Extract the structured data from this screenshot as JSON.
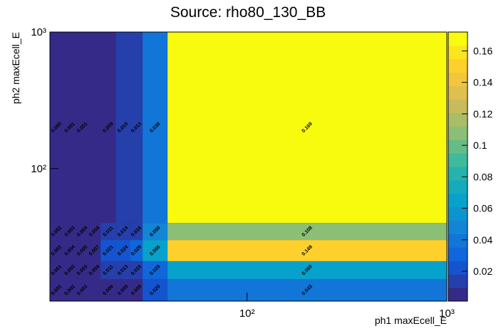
{
  "chart_data": {
    "type": "heatmap",
    "title": "Source: rho80_130_BB",
    "x_label": "ph1 maxEcell_E",
    "y_label": "ph2 maxEcell_E",
    "log_x": true,
    "log_y": true,
    "xlim": [
      10.3,
      1000
    ],
    "ylim": [
      10.7,
      1000
    ],
    "xticks": [
      {
        "value": 100,
        "label": "10²"
      },
      {
        "value": 1000,
        "label": "10³"
      }
    ],
    "yticks": [
      {
        "value": 100,
        "label": "10²"
      },
      {
        "value": 1000,
        "label": "10³"
      }
    ],
    "x_edges": [
      10.3,
      12,
      14,
      16,
      18.5,
      22,
      26,
      30,
      40,
      1000
    ],
    "y_edges": [
      10.7,
      15.5,
      21,
      30,
      40,
      1000
    ],
    "values": [
      [
        0.001,
        0.002,
        0.002,
        null,
        0.006,
        0.009,
        0.009,
        0.02,
        0.043
      ],
      [
        0.001,
        0.002,
        0.003,
        0.004,
        0.011,
        0.013,
        0.015,
        0.029,
        0.069
      ],
      [
        0.002,
        0.004,
        0.005,
        0.007,
        0.021,
        0.024,
        0.029,
        0.066,
        0.149
      ],
      [
        0.002,
        0.003,
        0.004,
        0.004,
        0.011,
        0.014,
        0.016,
        0.05,
        0.108
      ],
      [
        0.0,
        0.001,
        0.001,
        null,
        0.009,
        0.01,
        0.013,
        0.038,
        0.169
      ]
    ],
    "value_labels": [
      [
        "0.001",
        "0.002",
        "0.002",
        null,
        "0.006",
        "0.009",
        "0.009",
        "0.020",
        "0.043"
      ],
      [
        "0.001",
        "0.002",
        "0.003",
        "0.004",
        "0.011",
        "0.013",
        "0.015",
        "0.029",
        "0.069"
      ],
      [
        "0.002",
        "0.004",
        "0.005",
        "0.007",
        "0.021",
        "0.024",
        "0.029",
        "0.066",
        "0.149"
      ],
      [
        "0.002",
        "0.003",
        "0.004",
        "0.004",
        "0.011",
        "0.014",
        "0.016",
        "0.050",
        "0.108"
      ],
      [
        "0.000",
        "0.001",
        "0.001",
        null,
        "0.009",
        "0.010",
        "0.013",
        "0.038",
        "0.169"
      ]
    ],
    "zlim": [
      0.001,
      0.172
    ],
    "zticks": [
      0.02,
      0.04,
      0.06,
      0.08,
      0.1,
      0.12,
      0.14,
      0.16
    ],
    "levels": 20,
    "colorscale": [
      "#352a87",
      "#0f5cdd",
      "#1481d6",
      "#06a4ca",
      "#2eb7a4",
      "#87bf77",
      "#d1bb59",
      "#fec832",
      "#f9fb0e"
    ]
  }
}
